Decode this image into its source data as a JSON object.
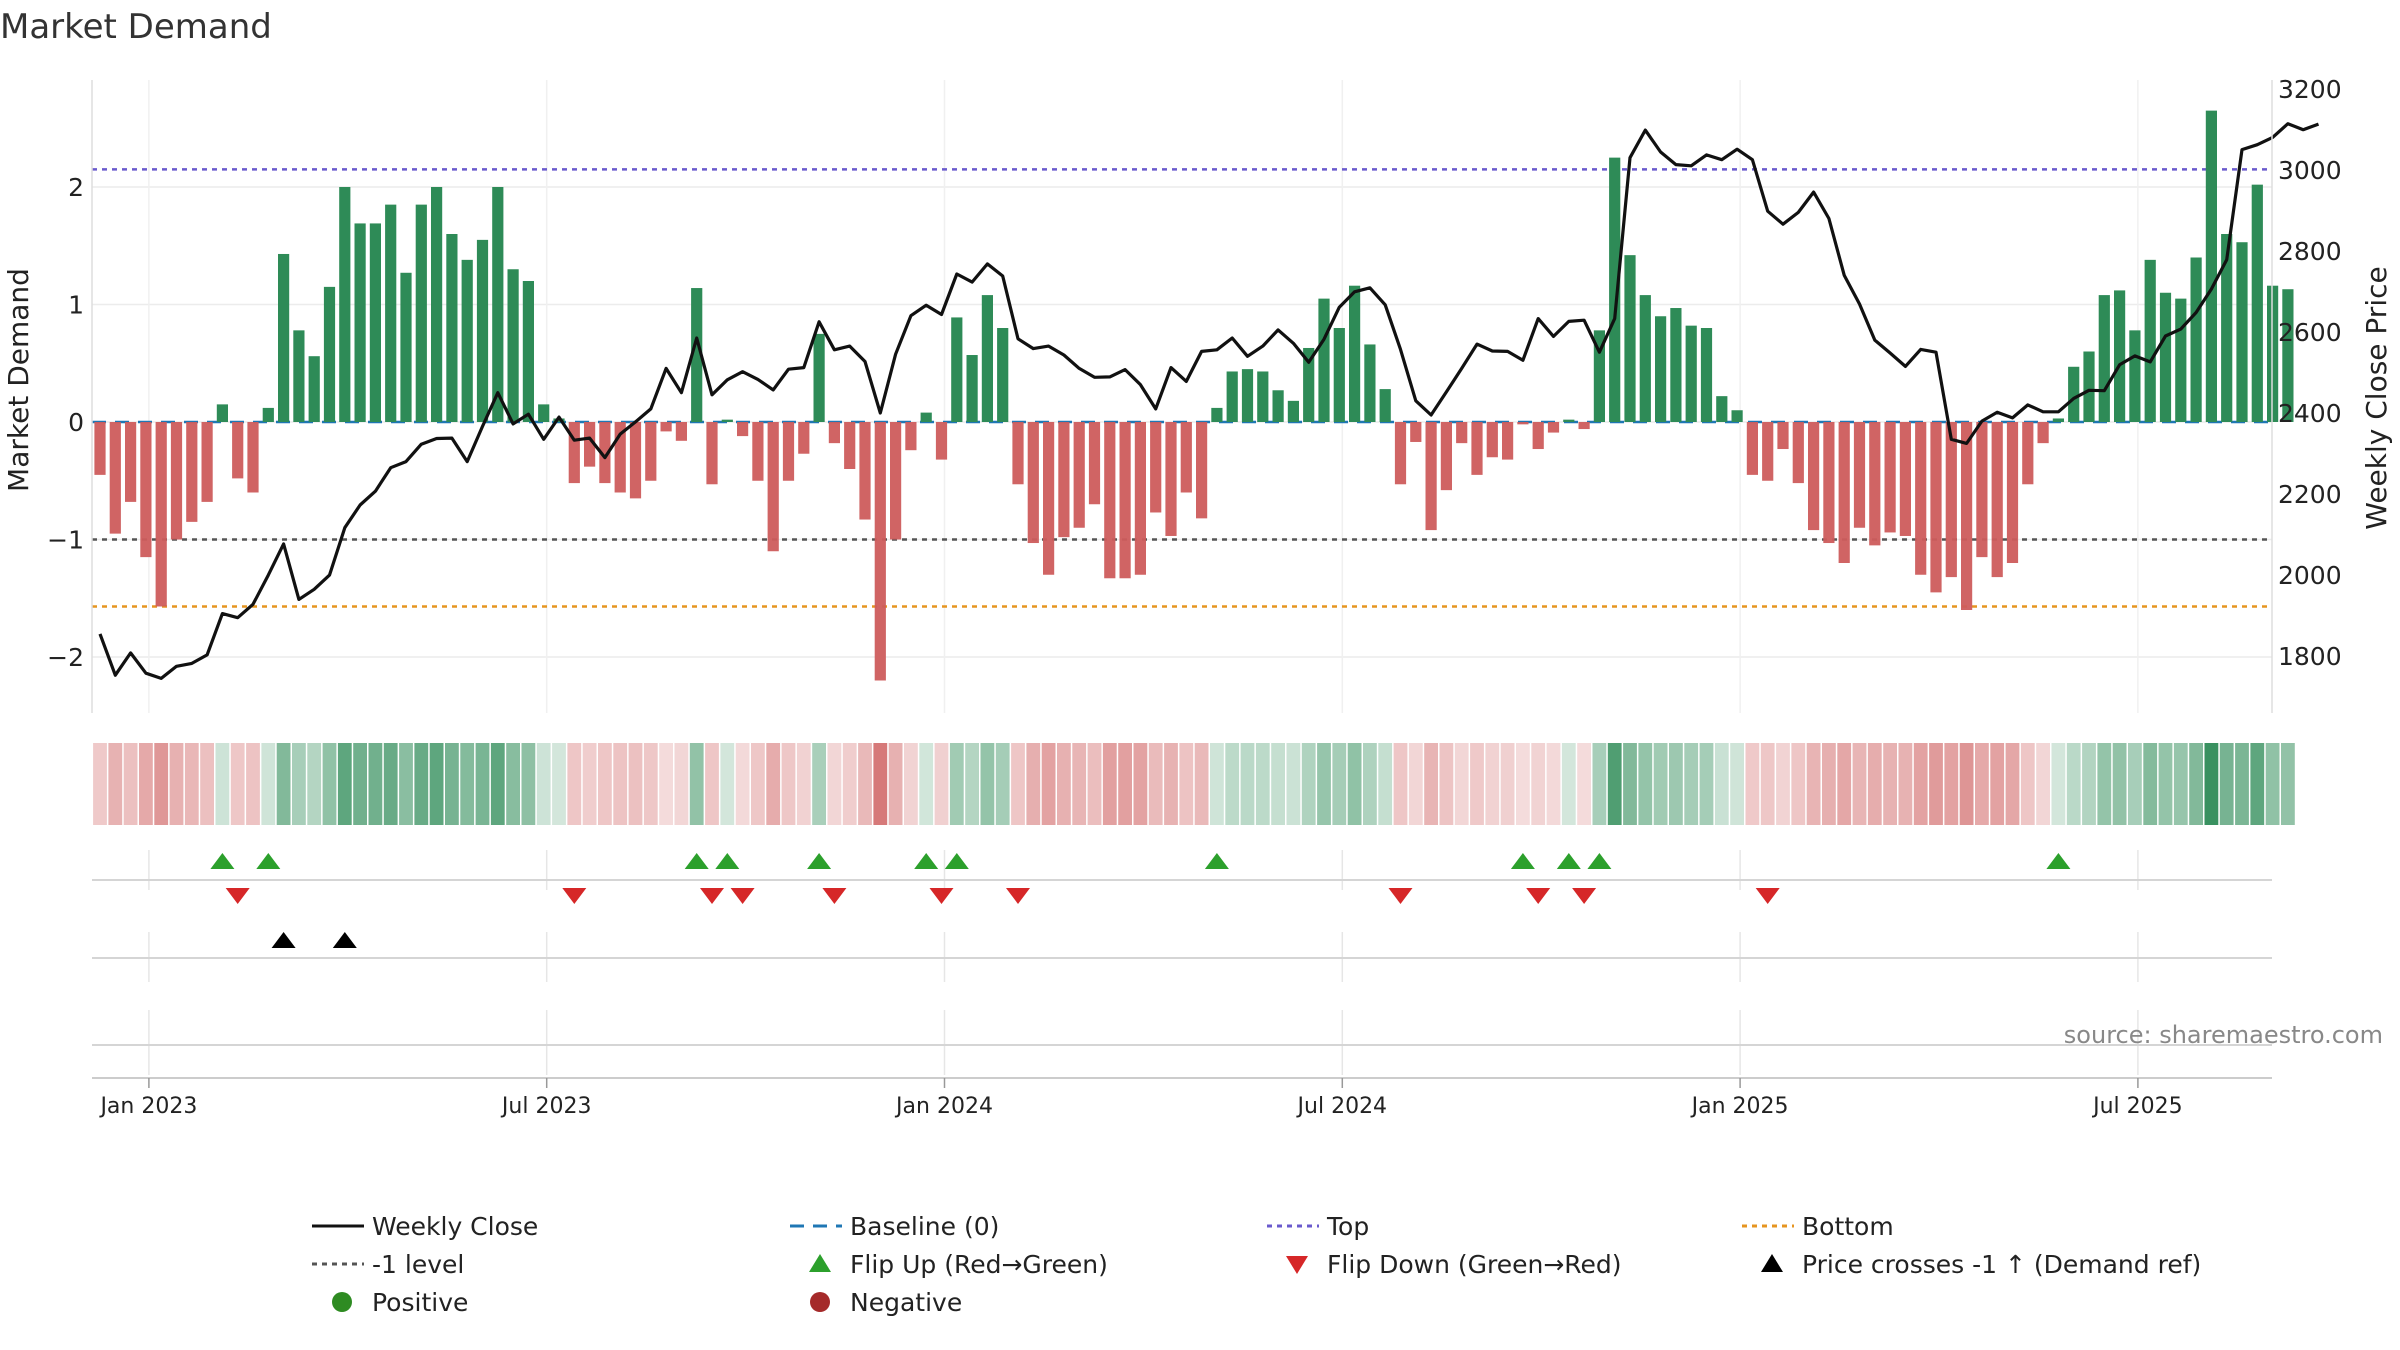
{
  "title": "Market Demand",
  "source": "source: sharemaestro.com",
  "chart_data": {
    "type": "bar",
    "title": "Market Demand",
    "ylabel": "Market Demand",
    "y2label": "Weekly Close Price",
    "ylim": [
      -2.45,
      2.8
    ],
    "y2lim": [
      1670,
      3220
    ],
    "yticks": [
      "2",
      "1",
      "0",
      "−1",
      "−2"
    ],
    "ytick_values": [
      2,
      1,
      0,
      -1,
      -2
    ],
    "y2ticks": [
      "3200",
      "3000",
      "2800",
      "2600",
      "2400",
      "2200",
      "2000",
      "1800"
    ],
    "y2tick_values": [
      3200,
      3000,
      2800,
      2600,
      2400,
      2200,
      2000,
      1800
    ],
    "xticks": [
      "Jan 2023",
      "Jul 2023",
      "Jan 2024",
      "Jul 2024",
      "Jan 2025",
      "Jul 2025"
    ],
    "xtick_weeks": [
      3,
      29,
      55,
      81,
      107,
      133
    ],
    "reference_lines": {
      "top": 2.15,
      "minus_one": -1,
      "bottom": -1.57,
      "baseline": 0
    },
    "demand": [
      -0.45,
      -0.95,
      -0.68,
      -1.15,
      -1.57,
      -1.0,
      -0.85,
      -0.68,
      0.15,
      -0.48,
      -0.6,
      0.12,
      1.43,
      0.78,
      0.56,
      1.15,
      2.0,
      1.69,
      1.69,
      1.85,
      1.27,
      1.85,
      2.0,
      1.6,
      1.38,
      1.55,
      2.0,
      1.3,
      1.2,
      0.15,
      0.03,
      -0.52,
      -0.38,
      -0.52,
      -0.6,
      -0.65,
      -0.5,
      -0.08,
      -0.16,
      1.14,
      -0.53,
      0.02,
      -0.12,
      -0.5,
      -1.1,
      -0.5,
      -0.27,
      0.75,
      -0.18,
      -0.4,
      -0.83,
      -2.2,
      -1.0,
      -0.24,
      0.08,
      -0.32,
      0.89,
      0.57,
      1.08,
      0.8,
      -0.53,
      -1.03,
      -1.3,
      -0.98,
      -0.9,
      -0.7,
      -1.33,
      -1.33,
      -1.3,
      -0.77,
      -0.97,
      -0.6,
      -0.82,
      0.12,
      0.43,
      0.45,
      0.43,
      0.27,
      0.18,
      0.63,
      1.05,
      0.8,
      1.16,
      0.66,
      0.28,
      -0.53,
      -0.17,
      -0.92,
      -0.58,
      -0.18,
      -0.45,
      -0.3,
      -0.32,
      -0.02,
      -0.23,
      -0.09,
      0.02,
      -0.06,
      0.78,
      2.25,
      1.42,
      1.08,
      0.9,
      0.97,
      0.82,
      0.8,
      0.22,
      0.1,
      -0.45,
      -0.5,
      -0.23,
      -0.52,
      -0.92,
      -1.03,
      -1.2,
      -0.9,
      -1.05,
      -0.94,
      -0.97,
      -1.3,
      -1.45,
      -1.32,
      -1.6,
      -1.15,
      -1.32,
      -1.2,
      -0.53,
      -0.18,
      0.03,
      0.47,
      0.6,
      1.08,
      1.12,
      0.78,
      1.38,
      1.1,
      1.05,
      1.4,
      2.65,
      1.6,
      1.53,
      2.02,
      1.16,
      1.13
    ],
    "price": [
      1855,
      1753,
      1808,
      1758,
      1745,
      1775,
      1782,
      1803,
      1905,
      1895,
      1928,
      2000,
      2077,
      1940,
      1965,
      2000,
      2117,
      2173,
      2207,
      2265,
      2280,
      2323,
      2337,
      2338,
      2280,
      2367,
      2450,
      2373,
      2397,
      2335,
      2390,
      2333,
      2338,
      2290,
      2348,
      2378,
      2410,
      2510,
      2450,
      2585,
      2445,
      2482,
      2502,
      2483,
      2457,
      2508,
      2512,
      2625,
      2556,
      2565,
      2527,
      2400,
      2545,
      2640,
      2666,
      2643,
      2743,
      2723,
      2768,
      2738,
      2583,
      2559,
      2565,
      2543,
      2510,
      2488,
      2489,
      2507,
      2470,
      2410,
      2512,
      2478,
      2552,
      2556,
      2585,
      2540,
      2565,
      2605,
      2572,
      2525,
      2582,
      2661,
      2699,
      2709,
      2667,
      2557,
      2430,
      2395,
      2452,
      2510,
      2570,
      2553,
      2552,
      2530,
      2633,
      2589,
      2626,
      2629,
      2550,
      2633,
      3030,
      3098,
      3044,
      3013,
      3010,
      3037,
      3025,
      3051,
      3025,
      2898,
      2866,
      2895,
      2945,
      2880,
      2740,
      2669,
      2580,
      2548,
      2515,
      2557,
      2550,
      2335,
      2325,
      2380,
      2402,
      2388,
      2420,
      2403,
      2403,
      2436,
      2456,
      2455,
      2519,
      2541,
      2526,
      2590,
      2607,
      2648,
      2706,
      2778,
      3050,
      3062,
      3080,
      3114,
      3099,
      3113
    ],
    "flip_up_weeks": [
      8,
      11,
      39,
      41,
      47,
      54,
      56,
      73,
      93,
      96,
      98,
      128
    ],
    "flip_down_weeks": [
      9,
      31,
      40,
      42,
      48,
      55,
      60,
      85,
      94,
      97,
      109
    ],
    "price_cross_weeks": [
      12,
      16
    ],
    "legend": [
      {
        "key": "weekly_close",
        "label": "Weekly Close"
      },
      {
        "key": "baseline",
        "label": "Baseline (0)"
      },
      {
        "key": "top",
        "label": "Top"
      },
      {
        "key": "bottom",
        "label": "Bottom"
      },
      {
        "key": "minus_one",
        "label": "-1 level"
      },
      {
        "key": "flip_up",
        "label": "Flip Up (Red→Green)"
      },
      {
        "key": "flip_down",
        "label": "Flip Down (Green→Red)"
      },
      {
        "key": "price_cross",
        "label": "Price crosses -1 ↑ (Demand ref)"
      },
      {
        "key": "positive",
        "label": "Positive"
      },
      {
        "key": "negative",
        "label": "Negative"
      }
    ]
  },
  "colors": {
    "positive": "#2e8b57",
    "negative": "#cd5c5c",
    "price": "#111111",
    "top": "#6a5acd",
    "minus_one": "#555555",
    "bottom": "#e69520",
    "baseline": "#1f77b4",
    "flip_up": "#2ca02c",
    "flip_down": "#d62728",
    "price_cross": "#000000",
    "positive_dot": "#2e8b22",
    "negative_dot": "#a52a2a"
  }
}
